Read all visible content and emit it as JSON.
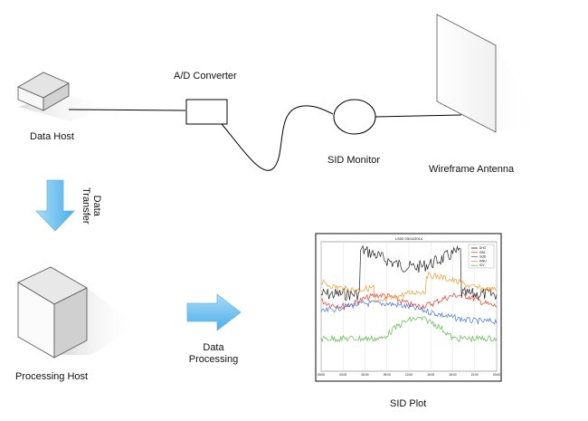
{
  "labels": {
    "data_host": "Data Host",
    "ad_converter": "A/D Converter",
    "sid_monitor": "SID Monitor",
    "wireframe_antenna": "Wireframe Antenna",
    "data_transfer_line1": "Data",
    "data_transfer_line2": "Transfer",
    "processing_host": "Processing Host",
    "data_processing_line1": "Data",
    "data_processing_line2": "Processing",
    "sid_plot": "SID Plot"
  },
  "plot": {
    "title": "LS02 03/11/2014",
    "x_ticks": [
      "00:00",
      "03:00",
      "06:00",
      "09:00",
      "12:00",
      "15:00",
      "18:00",
      "21:00",
      "00:00"
    ],
    "legend": [
      "DHO",
      "GBZ",
      "GQD",
      "HWU",
      "ICV"
    ]
  },
  "colors": {
    "arrow_fill": "#5bb8ee",
    "arrow_light": "#a9dcf7",
    "box_top": "#e6e6e6",
    "box_front": "#fbfbfb",
    "box_side": "#cfcfcf",
    "line": "#000000",
    "series": [
      "#222222",
      "#e8402a",
      "#4a78d8",
      "#f29a2e",
      "#5dbb4c"
    ]
  }
}
